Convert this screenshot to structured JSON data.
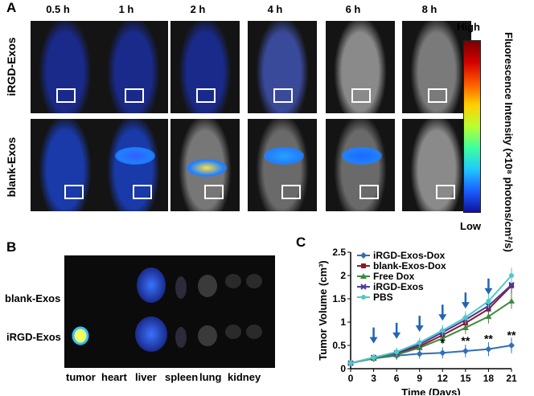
{
  "panels": {
    "a": "A",
    "b": "B",
    "c": "C"
  },
  "panel_a": {
    "time_points": [
      "0.5 h",
      "1 h",
      "2 h",
      "4 h",
      "6 h",
      "8 h"
    ],
    "rows": [
      "iRGD-Exos",
      "blank-Exos"
    ],
    "colorbar": {
      "high": "High",
      "low": "Low",
      "label": "Fluorescence Intensity (×10⁸ photons/cm²/s)"
    }
  },
  "panel_b": {
    "rows": [
      "blank-Exos",
      "iRGD-Exos"
    ],
    "organs": [
      "tumor",
      "heart",
      "liver",
      "spleen",
      "lung",
      "kidney"
    ]
  },
  "chart_data": {
    "type": "line",
    "title": "",
    "xlabel": "Time (Days)",
    "ylabel": "Tumor Volume (cm³)",
    "xlim": [
      0,
      21
    ],
    "ylim": [
      0,
      2.5
    ],
    "xticks": [
      0,
      3,
      6,
      9,
      12,
      15,
      18,
      21
    ],
    "yticks": [
      0,
      0.5,
      1,
      1.5,
      2,
      2.5
    ],
    "x": [
      0,
      3,
      6,
      9,
      12,
      15,
      18,
      21
    ],
    "series": [
      {
        "name": "iRGD-Exos-Dox",
        "color": "#2e6fb7",
        "marker": "diamond",
        "values": [
          0.12,
          0.22,
          0.28,
          0.32,
          0.34,
          0.38,
          0.42,
          0.5
        ]
      },
      {
        "name": "blank-Exos-Dox",
        "color": "#8b1a2b",
        "marker": "square",
        "values": [
          0.12,
          0.23,
          0.33,
          0.48,
          0.72,
          0.98,
          1.28,
          1.78
        ]
      },
      {
        "name": "Free Dox",
        "color": "#3d8a3d",
        "marker": "triangle",
        "values": [
          0.12,
          0.22,
          0.3,
          0.45,
          0.65,
          0.88,
          1.12,
          1.45
        ]
      },
      {
        "name": "iRGD-Exos",
        "color": "#4a3b9a",
        "marker": "x",
        "values": [
          0.12,
          0.24,
          0.34,
          0.52,
          0.78,
          1.05,
          1.35,
          1.8
        ]
      },
      {
        "name": "PBS",
        "color": "#4ec9c9",
        "marker": "star",
        "values": [
          0.12,
          0.24,
          0.36,
          0.56,
          0.82,
          1.1,
          1.45,
          2.0
        ]
      }
    ],
    "injection_days": [
      3,
      6,
      9,
      12,
      15,
      18
    ],
    "significance": [
      {
        "day": 12,
        "label": "*"
      },
      {
        "day": 15,
        "label": "**"
      },
      {
        "day": 18,
        "label": "**"
      },
      {
        "day": 21,
        "label": "**"
      }
    ],
    "legend_position": "top-left",
    "colors": {
      "arrow": "#2266b0"
    }
  }
}
